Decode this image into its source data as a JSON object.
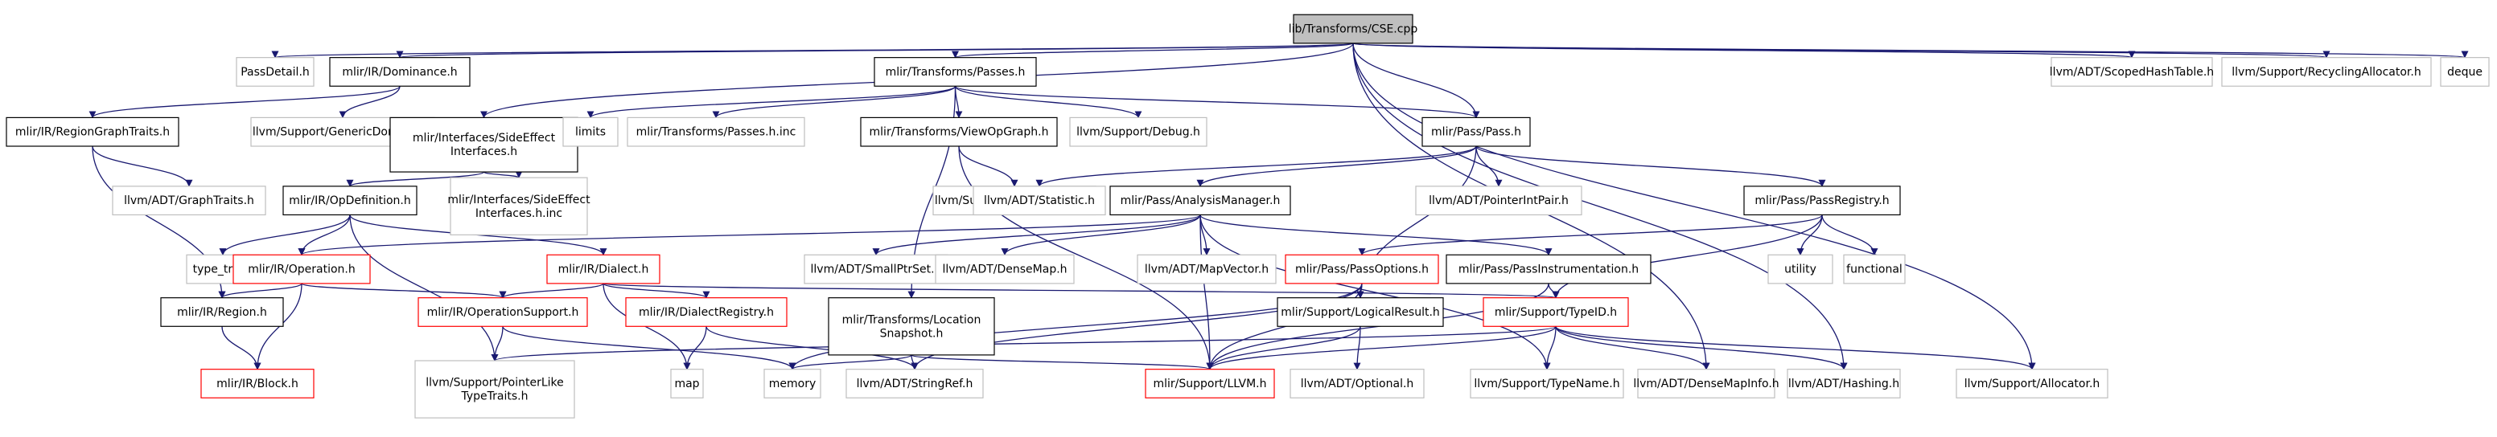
{
  "colors": {
    "root_fill": "#bfbfbf",
    "edge": "#191970",
    "documented_border": "#000000",
    "truncated_border": "#ff0000",
    "external_border": "#bfbfbf"
  },
  "nodes": [
    {
      "id": "cse",
      "lines": [
        "lib/Transforms/CSE.cpp"
      ],
      "style": "root"
    },
    {
      "id": "passdetail",
      "lines": [
        "PassDetail.h"
      ],
      "style": "gray"
    },
    {
      "id": "dominance",
      "lines": [
        "mlir/IR/Dominance.h"
      ],
      "style": "plain"
    },
    {
      "id": "passes",
      "lines": [
        "mlir/Transforms/Passes.h"
      ],
      "style": "plain"
    },
    {
      "id": "scopedhash",
      "lines": [
        "llvm/ADT/ScopedHashTable.h"
      ],
      "style": "gray"
    },
    {
      "id": "recycling",
      "lines": [
        "llvm/Support/RecyclingAllocator.h"
      ],
      "style": "gray"
    },
    {
      "id": "deque",
      "lines": [
        "deque"
      ],
      "style": "gray"
    },
    {
      "id": "regiongraph",
      "lines": [
        "mlir/IR/RegionGraphTraits.h"
      ],
      "style": "plain"
    },
    {
      "id": "genericdom",
      "lines": [
        "llvm/Support/GenericDomTree.h"
      ],
      "style": "gray"
    },
    {
      "id": "sideeffect",
      "lines": [
        "mlir/Interfaces/SideEffect",
        "Interfaces.h"
      ],
      "style": "plain"
    },
    {
      "id": "limits",
      "lines": [
        "limits"
      ],
      "style": "gray"
    },
    {
      "id": "passesinc",
      "lines": [
        "mlir/Transforms/Passes.h.inc"
      ],
      "style": "gray"
    },
    {
      "id": "viewopgraph",
      "lines": [
        "mlir/Transforms/ViewOpGraph.h"
      ],
      "style": "plain"
    },
    {
      "id": "debug",
      "lines": [
        "llvm/Support/Debug.h"
      ],
      "style": "gray"
    },
    {
      "id": "pass",
      "lines": [
        "mlir/Pass/Pass.h"
      ],
      "style": "plain"
    },
    {
      "id": "graphtraits",
      "lines": [
        "llvm/ADT/GraphTraits.h"
      ],
      "style": "gray"
    },
    {
      "id": "sideeffectinc",
      "lines": [
        "mlir/Interfaces/SideEffect",
        "Interfaces.h.inc"
      ],
      "style": "gray"
    },
    {
      "id": "rawostream",
      "lines": [
        "llvm/Support/raw_ostream.h"
      ],
      "style": "gray"
    },
    {
      "id": "statistic",
      "lines": [
        "llvm/ADT/Statistic.h"
      ],
      "style": "gray"
    },
    {
      "id": "analysismgr",
      "lines": [
        "mlir/Pass/AnalysisManager.h"
      ],
      "style": "plain"
    },
    {
      "id": "pointerintpair",
      "lines": [
        "llvm/ADT/PointerIntPair.h"
      ],
      "style": "gray"
    },
    {
      "id": "passregistry",
      "lines": [
        "mlir/Pass/PassRegistry.h"
      ],
      "style": "plain"
    },
    {
      "id": "opdefinition",
      "lines": [
        "mlir/IR/OpDefinition.h"
      ],
      "style": "plain"
    },
    {
      "id": "typetraits",
      "lines": [
        "type_traits"
      ],
      "style": "gray"
    },
    {
      "id": "operation",
      "lines": [
        "mlir/IR/Operation.h"
      ],
      "style": "red"
    },
    {
      "id": "dialect",
      "lines": [
        "mlir/IR/Dialect.h"
      ],
      "style": "red"
    },
    {
      "id": "smallptrset",
      "lines": [
        "llvm/ADT/SmallPtrSet.h"
      ],
      "style": "gray"
    },
    {
      "id": "densemap",
      "lines": [
        "llvm/ADT/DenseMap.h"
      ],
      "style": "gray"
    },
    {
      "id": "mapvector",
      "lines": [
        "llvm/ADT/MapVector.h"
      ],
      "style": "gray"
    },
    {
      "id": "passoptions",
      "lines": [
        "mlir/Pass/PassOptions.h"
      ],
      "style": "red"
    },
    {
      "id": "passinstr",
      "lines": [
        "mlir/Pass/PassInstrumentation.h"
      ],
      "style": "plain"
    },
    {
      "id": "utility",
      "lines": [
        "utility"
      ],
      "style": "gray"
    },
    {
      "id": "functional",
      "lines": [
        "functional"
      ],
      "style": "gray"
    },
    {
      "id": "region",
      "lines": [
        "mlir/IR/Region.h"
      ],
      "style": "plain"
    },
    {
      "id": "opsupport",
      "lines": [
        "mlir/IR/OperationSupport.h"
      ],
      "style": "red"
    },
    {
      "id": "dialectreg",
      "lines": [
        "mlir/IR/DialectRegistry.h"
      ],
      "style": "red"
    },
    {
      "id": "locsnapshot",
      "lines": [
        "mlir/Transforms/Location",
        "Snapshot.h"
      ],
      "style": "plain"
    },
    {
      "id": "logicalresult",
      "lines": [
        "mlir/Support/LogicalResult.h"
      ],
      "style": "plain"
    },
    {
      "id": "typeid",
      "lines": [
        "mlir/Support/TypeID.h"
      ],
      "style": "red"
    },
    {
      "id": "block",
      "lines": [
        "mlir/IR/Block.h"
      ],
      "style": "red"
    },
    {
      "id": "pointerlike",
      "lines": [
        "llvm/Support/PointerLike",
        "TypeTraits.h"
      ],
      "style": "gray"
    },
    {
      "id": "map",
      "lines": [
        "map"
      ],
      "style": "gray"
    },
    {
      "id": "memory",
      "lines": [
        "memory"
      ],
      "style": "gray"
    },
    {
      "id": "stringref",
      "lines": [
        "llvm/ADT/StringRef.h"
      ],
      "style": "gray"
    },
    {
      "id": "llvmh",
      "lines": [
        "mlir/Support/LLVM.h"
      ],
      "style": "red"
    },
    {
      "id": "optional",
      "lines": [
        "llvm/ADT/Optional.h"
      ],
      "style": "gray"
    },
    {
      "id": "typename",
      "lines": [
        "llvm/Support/TypeName.h"
      ],
      "style": "gray"
    },
    {
      "id": "densemapinfo",
      "lines": [
        "llvm/ADT/DenseMapInfo.h"
      ],
      "style": "gray"
    },
    {
      "id": "hashing",
      "lines": [
        "llvm/ADT/Hashing.h"
      ],
      "style": "gray"
    },
    {
      "id": "allocator",
      "lines": [
        "llvm/Support/Allocator.h"
      ],
      "style": "gray"
    }
  ],
  "edges": [
    [
      "cse",
      "passdetail"
    ],
    [
      "cse",
      "dominance"
    ],
    [
      "cse",
      "passes"
    ],
    [
      "cse",
      "sideeffect"
    ],
    [
      "cse",
      "pass"
    ],
    [
      "cse",
      "scopedhash"
    ],
    [
      "cse",
      "recycling"
    ],
    [
      "cse",
      "deque"
    ],
    [
      "cse",
      "densemapinfo"
    ],
    [
      "cse",
      "hashing"
    ],
    [
      "cse",
      "allocator"
    ],
    [
      "dominance",
      "regiongraph"
    ],
    [
      "dominance",
      "genericdom"
    ],
    [
      "regiongraph",
      "graphtraits"
    ],
    [
      "regiongraph",
      "region"
    ],
    [
      "passes",
      "limits"
    ],
    [
      "passes",
      "passesinc"
    ],
    [
      "passes",
      "viewopgraph"
    ],
    [
      "passes",
      "debug"
    ],
    [
      "passes",
      "pass"
    ],
    [
      "passes",
      "locsnapshot"
    ],
    [
      "sideeffect",
      "opdefinition"
    ],
    [
      "sideeffect",
      "sideeffectinc"
    ],
    [
      "viewopgraph",
      "rawostream"
    ],
    [
      "viewopgraph",
      "llvmh"
    ],
    [
      "pass",
      "statistic"
    ],
    [
      "pass",
      "analysismgr"
    ],
    [
      "pass",
      "pointerintpair"
    ],
    [
      "pass",
      "passregistry"
    ],
    [
      "pass",
      "logicalresult"
    ],
    [
      "analysismgr",
      "operation"
    ],
    [
      "analysismgr",
      "smallptrset"
    ],
    [
      "analysismgr",
      "densemap"
    ],
    [
      "analysismgr",
      "mapvector"
    ],
    [
      "analysismgr",
      "passinstr"
    ],
    [
      "analysismgr",
      "llvmh"
    ],
    [
      "analysismgr",
      "typename"
    ],
    [
      "passregistry",
      "utility"
    ],
    [
      "passregistry",
      "functional"
    ],
    [
      "passregistry",
      "passoptions"
    ],
    [
      "passregistry",
      "typeid"
    ],
    [
      "opdefinition",
      "typetraits"
    ],
    [
      "opdefinition",
      "operation"
    ],
    [
      "opdefinition",
      "dialect"
    ],
    [
      "opdefinition",
      "pointerlike"
    ],
    [
      "operation",
      "region"
    ],
    [
      "operation",
      "opsupport"
    ],
    [
      "operation",
      "block"
    ],
    [
      "dialect",
      "opsupport"
    ],
    [
      "dialect",
      "dialectreg"
    ],
    [
      "dialect",
      "map"
    ],
    [
      "dialect",
      "typeid"
    ],
    [
      "region",
      "block"
    ],
    [
      "opsupport",
      "pointerlike"
    ],
    [
      "opsupport",
      "memory"
    ],
    [
      "dialectreg",
      "map"
    ],
    [
      "dialectreg",
      "stringref"
    ],
    [
      "locsnapshot",
      "memory"
    ],
    [
      "locsnapshot",
      "stringref"
    ],
    [
      "locsnapshot",
      "llvmh"
    ],
    [
      "passoptions",
      "logicalresult"
    ],
    [
      "passoptions",
      "llvmh"
    ],
    [
      "passoptions",
      "memory"
    ],
    [
      "passoptions",
      "stringref"
    ],
    [
      "passinstr",
      "typeid"
    ],
    [
      "passinstr",
      "llvmh"
    ],
    [
      "logicalresult",
      "llvmh"
    ],
    [
      "logicalresult",
      "optional"
    ],
    [
      "typeid",
      "pointerlike"
    ],
    [
      "typeid",
      "llvmh"
    ],
    [
      "typeid",
      "typename"
    ],
    [
      "typeid",
      "densemapinfo"
    ],
    [
      "typeid",
      "hashing"
    ],
    [
      "typeid",
      "allocator"
    ]
  ]
}
